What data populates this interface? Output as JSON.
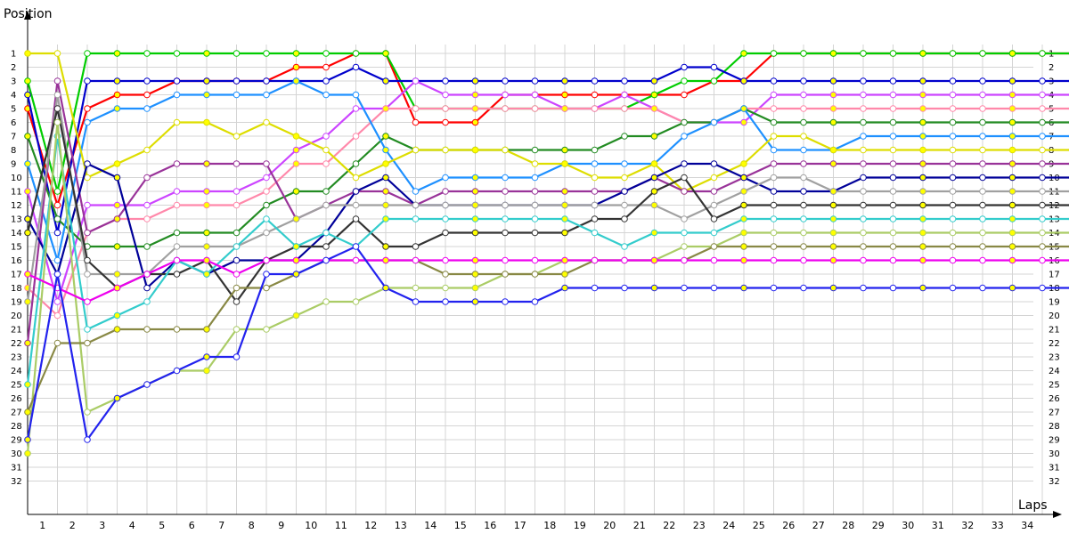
{
  "chart_data": {
    "type": "line",
    "ylabel": "Position",
    "xlabel": "Laps",
    "x": [
      0,
      1,
      2,
      3,
      4,
      5,
      6,
      7,
      8,
      9,
      10,
      11,
      12,
      13,
      14,
      15,
      16,
      17,
      18,
      19,
      20,
      21,
      22,
      23,
      24,
      25,
      26,
      27,
      28,
      29,
      30,
      31,
      32,
      33,
      34,
      35
    ],
    "x_tick_labels": [
      "1",
      "2",
      "3",
      "4",
      "5",
      "6",
      "7",
      "8",
      "9",
      "10",
      "11",
      "12",
      "13",
      "14",
      "15",
      "16",
      "17",
      "18",
      "19",
      "20",
      "21",
      "22",
      "23",
      "24",
      "25",
      "26",
      "27",
      "28",
      "29",
      "30",
      "31",
      "32",
      "33",
      "34"
    ],
    "y_tick_labels": [
      "1",
      "2",
      "3",
      "4",
      "5",
      "6",
      "7",
      "8",
      "9",
      "10",
      "11",
      "12",
      "13",
      "14",
      "15",
      "16",
      "17",
      "18",
      "19",
      "20",
      "21",
      "22",
      "23",
      "24",
      "25",
      "26",
      "27",
      "28",
      "29",
      "30",
      "31",
      "32"
    ],
    "ylim": [
      1,
      32
    ],
    "y_inverted": true,
    "grid": true,
    "series": [
      {
        "color": "#ff0000",
        "values": [
          5,
          12,
          5,
          4,
          4,
          3,
          3,
          3,
          3,
          2,
          2,
          1,
          1,
          6,
          6,
          6,
          4,
          4,
          4,
          4,
          4,
          4,
          4,
          3,
          3,
          1,
          1,
          1,
          1,
          1,
          1,
          1,
          1,
          1,
          1,
          1
        ]
      },
      {
        "color": "#00cc00",
        "values": [
          3,
          11,
          1,
          1,
          1,
          1,
          1,
          1,
          1,
          1,
          1,
          1,
          1,
          5,
          5,
          5,
          5,
          5,
          5,
          5,
          5,
          4,
          3,
          3,
          1,
          1,
          1,
          1,
          1,
          1,
          1,
          1,
          1,
          1,
          1,
          1
        ]
      },
      {
        "color": "#0000cc",
        "values": [
          4,
          14,
          3,
          3,
          3,
          3,
          3,
          3,
          3,
          3,
          3,
          2,
          3,
          3,
          3,
          3,
          3,
          3,
          3,
          3,
          3,
          3,
          2,
          2,
          3,
          3,
          3,
          3,
          3,
          3,
          3,
          3,
          3,
          3,
          3,
          3
        ]
      },
      {
        "color": "#cc44ff",
        "values": [
          11,
          19,
          12,
          12,
          12,
          11,
          11,
          11,
          10,
          8,
          7,
          5,
          5,
          3,
          4,
          4,
          4,
          4,
          5,
          5,
          4,
          5,
          6,
          6,
          6,
          4,
          4,
          4,
          4,
          4,
          4,
          4,
          4,
          4,
          4,
          4
        ]
      },
      {
        "color": "#ff88aa",
        "values": [
          18,
          20,
          14,
          13,
          13,
          12,
          12,
          12,
          11,
          9,
          9,
          7,
          5,
          5,
          5,
          5,
          5,
          5,
          5,
          5,
          5,
          5,
          6,
          6,
          5,
          5,
          5,
          5,
          5,
          5,
          5,
          5,
          5,
          5,
          5,
          5
        ]
      },
      {
        "color": "#228b22",
        "values": [
          7,
          13,
          15,
          15,
          15,
          14,
          14,
          14,
          12,
          11,
          11,
          9,
          7,
          8,
          8,
          8,
          8,
          8,
          8,
          8,
          7,
          7,
          6,
          6,
          5,
          6,
          6,
          6,
          6,
          6,
          6,
          6,
          6,
          6,
          6,
          6
        ]
      },
      {
        "color": "#1e90ff",
        "values": [
          9,
          16,
          6,
          5,
          5,
          4,
          4,
          4,
          4,
          3,
          4,
          4,
          8,
          11,
          10,
          10,
          10,
          10,
          9,
          9,
          9,
          9,
          7,
          6,
          5,
          8,
          8,
          8,
          7,
          7,
          7,
          7,
          7,
          7,
          7,
          7
        ]
      },
      {
        "color": "#dddd00",
        "values": [
          1,
          1,
          10,
          9,
          8,
          6,
          6,
          7,
          6,
          7,
          8,
          10,
          9,
          8,
          8,
          8,
          8,
          9,
          9,
          10,
          10,
          9,
          11,
          10,
          9,
          7,
          7,
          8,
          8,
          8,
          8,
          8,
          8,
          8,
          8,
          8
        ]
      },
      {
        "color": "#993399",
        "values": [
          22,
          3,
          14,
          13,
          10,
          9,
          9,
          9,
          9,
          13,
          12,
          11,
          11,
          12,
          11,
          11,
          11,
          11,
          11,
          11,
          11,
          10,
          11,
          11,
          10,
          9,
          9,
          9,
          9,
          9,
          9,
          9,
          9,
          9,
          9,
          9
        ]
      },
      {
        "color": "#000099",
        "values": [
          13,
          17,
          9,
          10,
          18,
          16,
          17,
          16,
          16,
          16,
          14,
          11,
          10,
          12,
          12,
          12,
          12,
          12,
          12,
          12,
          11,
          10,
          9,
          9,
          10,
          11,
          11,
          11,
          10,
          10,
          10,
          10,
          10,
          10,
          10,
          10
        ]
      },
      {
        "color": "#a0a0a0",
        "values": [
          19,
          4,
          17,
          17,
          17,
          15,
          15,
          15,
          14,
          13,
          12,
          12,
          12,
          12,
          12,
          12,
          12,
          12,
          12,
          12,
          12,
          12,
          13,
          12,
          11,
          10,
          10,
          11,
          11,
          11,
          11,
          11,
          11,
          11,
          11,
          11
        ]
      },
      {
        "color": "#333333",
        "values": [
          14,
          5,
          16,
          18,
          17,
          17,
          16,
          19,
          16,
          15,
          15,
          13,
          15,
          15,
          14,
          14,
          14,
          14,
          14,
          13,
          13,
          11,
          10,
          13,
          12,
          12,
          12,
          12,
          12,
          12,
          12,
          12,
          12,
          12,
          12,
          12
        ]
      },
      {
        "color": "#33cccc",
        "values": [
          25,
          7,
          21,
          20,
          19,
          16,
          17,
          15,
          13,
          15,
          14,
          15,
          13,
          13,
          13,
          13,
          13,
          13,
          13,
          14,
          15,
          14,
          14,
          14,
          13,
          13,
          13,
          13,
          13,
          13,
          13,
          13,
          13,
          13,
          13,
          13
        ]
      },
      {
        "color": "#aacc66",
        "values": [
          30,
          6,
          27,
          26,
          25,
          24,
          24,
          21,
          21,
          20,
          19,
          19,
          18,
          18,
          18,
          18,
          17,
          17,
          16,
          16,
          16,
          16,
          15,
          15,
          14,
          14,
          14,
          14,
          14,
          14,
          14,
          14,
          14,
          14,
          14,
          14
        ]
      },
      {
        "color": "#888844",
        "values": [
          27,
          22,
          22,
          21,
          21,
          21,
          21,
          18,
          18,
          17,
          16,
          16,
          16,
          16,
          17,
          17,
          17,
          17,
          17,
          16,
          16,
          16,
          16,
          15,
          15,
          15,
          15,
          15,
          15,
          15,
          15,
          15,
          15,
          15,
          15,
          15
        ]
      },
      {
        "color": "#ee00ee",
        "values": [
          17,
          18,
          19,
          18,
          17,
          16,
          16,
          17,
          16,
          16,
          16,
          16,
          16,
          16,
          16,
          16,
          16,
          16,
          16,
          16,
          16,
          16,
          16,
          16,
          16,
          16,
          16,
          16,
          16,
          16,
          16,
          16,
          16,
          16,
          16,
          16
        ]
      },
      {
        "color": "#2222ee",
        "values": [
          29,
          17,
          29,
          26,
          25,
          24,
          23,
          23,
          17,
          17,
          16,
          15,
          18,
          19,
          19,
          19,
          19,
          19,
          18,
          18,
          18,
          18,
          18,
          18,
          18,
          18,
          18,
          18,
          18,
          18,
          18,
          18,
          18,
          18,
          18,
          18
        ]
      }
    ]
  }
}
